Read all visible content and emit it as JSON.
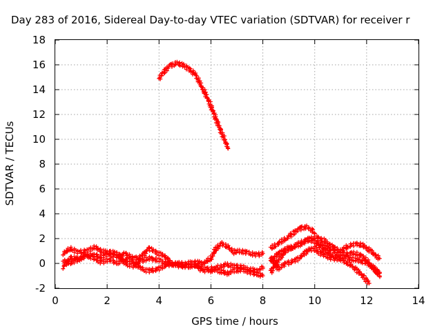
{
  "chart_data": {
    "type": "scatter",
    "title": "Day 283 of 2016, Sidereal Day-to-day VTEC variation (SDTVAR) for receiver r",
    "xlabel": "GPS time / hours",
    "ylabel": "SDTVAR / TECUs",
    "xlim": [
      0,
      14
    ],
    "ylim": [
      -2,
      18
    ],
    "xticks": [
      "0",
      "2",
      "4",
      "6",
      "8",
      "10",
      "12",
      "14"
    ],
    "yticks": [
      "-2",
      "0",
      "2",
      "4",
      "6",
      "8",
      "10",
      "12",
      "14",
      "16",
      "18"
    ],
    "grid": true,
    "marker": "+",
    "marker_color": "#ff0000",
    "series": [
      {
        "x": [
          4.0,
          4.2,
          4.4,
          4.6,
          4.8,
          5.0,
          5.2,
          5.4,
          5.6,
          5.8,
          6.0,
          6.2,
          6.4,
          6.6,
          6.65
        ],
        "values": [
          14.9,
          15.5,
          15.9,
          16.1,
          16.1,
          15.9,
          15.6,
          15.2,
          14.4,
          13.6,
          12.7,
          11.6,
          10.6,
          9.6,
          9.3
        ]
      },
      {
        "x": [
          0.3,
          0.6,
          0.9,
          1.2,
          1.5,
          1.8,
          2.1,
          2.4,
          2.7,
          3.0,
          3.3,
          3.6,
          3.9,
          4.2,
          4.5,
          4.8,
          5.1,
          5.4,
          5.7,
          6.0,
          6.2,
          6.4,
          6.6,
          6.9,
          7.2,
          7.5,
          7.8,
          8.0
        ],
        "values": [
          0.8,
          1.2,
          0.9,
          1.0,
          1.3,
          1.0,
          0.8,
          0.5,
          0.8,
          0.4,
          0.5,
          1.2,
          0.9,
          0.6,
          0.0,
          -0.2,
          0.0,
          0.1,
          0.0,
          0.4,
          1.2,
          1.6,
          1.4,
          0.9,
          1.0,
          0.8,
          0.7,
          0.8
        ]
      },
      {
        "x": [
          0.3,
          0.6,
          0.9,
          1.2,
          1.5,
          1.8,
          2.1,
          2.4,
          2.7,
          3.0,
          3.3,
          3.6,
          3.9,
          4.2,
          4.5,
          4.8,
          5.1,
          5.4,
          5.7,
          6.0,
          6.3,
          6.6,
          6.9,
          7.2,
          7.5,
          7.8,
          8.0
        ],
        "values": [
          -0.3,
          0.5,
          0.3,
          0.6,
          0.7,
          0.5,
          0.9,
          0.8,
          0.0,
          -0.2,
          0.2,
          0.4,
          0.3,
          0.1,
          -0.1,
          0.0,
          -0.1,
          -0.2,
          -0.4,
          -0.6,
          -0.3,
          -0.1,
          -0.2,
          -0.3,
          -0.5,
          -0.6,
          -0.3
        ]
      },
      {
        "x": [
          0.3,
          0.6,
          0.9,
          1.2,
          1.5,
          1.8,
          2.1,
          2.4,
          2.7,
          3.0,
          3.3,
          3.6,
          3.9,
          4.2,
          4.5,
          4.8,
          5.1,
          5.4,
          5.7,
          6.0,
          6.3,
          6.6,
          6.9,
          7.2,
          7.5,
          7.8,
          8.0
        ],
        "values": [
          0.2,
          0.0,
          0.4,
          0.7,
          0.4,
          0.1,
          0.3,
          0.0,
          0.4,
          0.1,
          -0.4,
          -0.6,
          -0.5,
          -0.2,
          0.0,
          -0.1,
          -0.3,
          -0.1,
          -0.6,
          -0.4,
          -0.6,
          -0.8,
          -0.6,
          -0.5,
          -0.7,
          -0.9,
          -1.0
        ]
      },
      {
        "x": [
          8.3,
          8.6,
          8.9,
          9.2,
          9.5,
          9.7,
          9.9,
          10.0
        ],
        "values": [
          1.2,
          1.6,
          2.0,
          2.5,
          2.9,
          2.9,
          2.7,
          2.4
        ]
      },
      {
        "x": [
          8.3,
          8.6,
          8.9,
          9.2,
          9.5,
          9.8,
          10.1,
          10.4,
          10.7,
          11.0,
          11.3,
          11.6,
          11.9,
          12.2,
          12.5
        ],
        "values": [
          -0.7,
          0.3,
          1.0,
          1.4,
          1.7,
          2.0,
          2.1,
          1.8,
          1.3,
          1.0,
          1.4,
          1.6,
          1.4,
          0.9,
          0.4
        ]
      },
      {
        "x": [
          8.3,
          8.6,
          8.9,
          9.2,
          9.5,
          9.8,
          10.1,
          10.4,
          10.7,
          11.0,
          11.3,
          11.6,
          11.9,
          12.2,
          12.5
        ],
        "values": [
          0.2,
          0.8,
          1.2,
          1.3,
          1.6,
          1.9,
          1.7,
          1.4,
          1.0,
          0.7,
          0.8,
          0.8,
          0.5,
          -0.3,
          -1.0
        ]
      },
      {
        "x": [
          8.3,
          8.6,
          8.9,
          9.2,
          9.5,
          9.8,
          10.1,
          10.4,
          10.7,
          11.0,
          11.3,
          11.6,
          11.9,
          12.1
        ],
        "values": [
          0.5,
          -0.4,
          0.0,
          0.2,
          0.6,
          1.2,
          1.0,
          0.6,
          0.4,
          0.3,
          0.0,
          -0.5,
          -1.1,
          -1.6
        ]
      },
      {
        "x": [
          10.0,
          10.3,
          10.6,
          10.9,
          11.2,
          11.5,
          11.8,
          12.1,
          12.4,
          12.5
        ],
        "values": [
          1.5,
          1.2,
          0.7,
          0.5,
          0.5,
          0.3,
          0.2,
          -0.1,
          -0.5,
          -0.8
        ]
      }
    ]
  }
}
